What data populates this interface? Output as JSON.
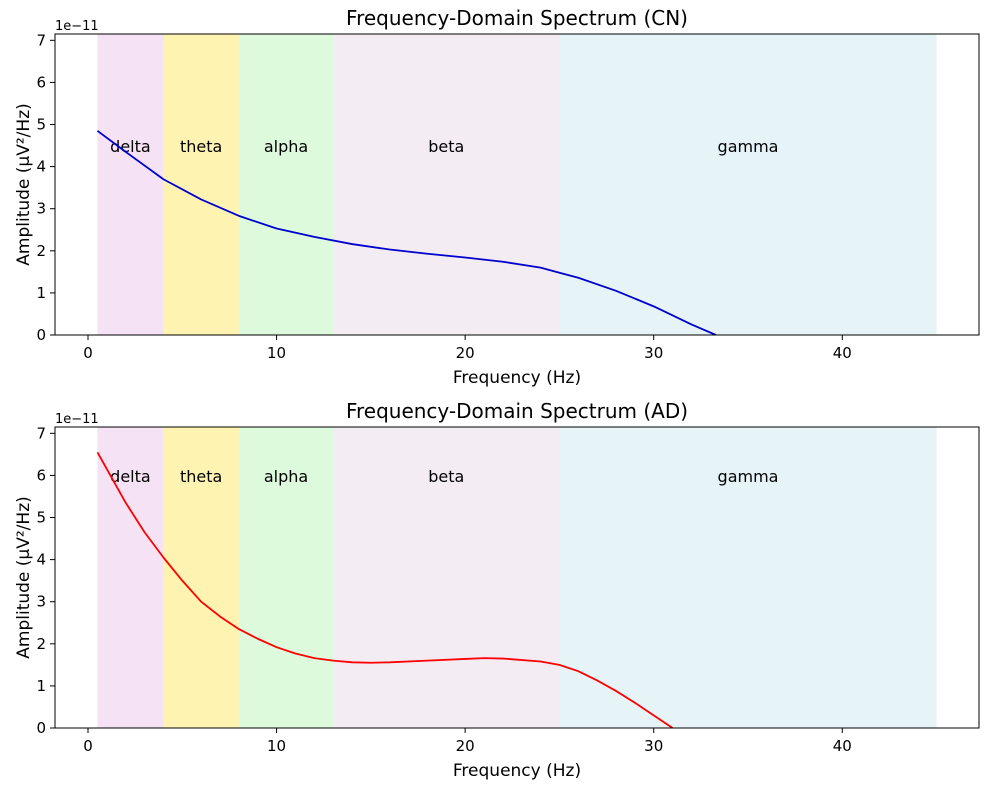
{
  "chart_data": [
    {
      "type": "line",
      "title": "Frequency-Domain Spectrum (CN)",
      "xlabel": "Frequency (Hz)",
      "ylabel": "Amplitude (µV²/Hz)",
      "y_offset_label": "1e−11",
      "xlim": [
        -1.75,
        47.25
      ],
      "ylim": [
        0,
        7.15
      ],
      "xticks": [
        0,
        10,
        20,
        30,
        40
      ],
      "xtick_labels": [
        "0",
        "10",
        "20",
        "30",
        "40"
      ],
      "yticks": [
        0,
        1,
        2,
        3,
        4,
        5,
        6,
        7
      ],
      "ytick_labels": [
        "0",
        "1",
        "2",
        "3",
        "4",
        "5",
        "6",
        "7"
      ],
      "grid": false,
      "bands": [
        {
          "name": "delta",
          "range": [
            0.5,
            4
          ],
          "color": "#dda0dd"
        },
        {
          "name": "theta",
          "range": [
            4,
            8
          ],
          "color": "#ffd700"
        },
        {
          "name": "alpha",
          "range": [
            8,
            13
          ],
          "color": "#90ee90"
        },
        {
          "name": "beta",
          "range": [
            13,
            25
          ],
          "color": "#d8bfd8"
        },
        {
          "name": "gamma",
          "range": [
            25,
            45
          ],
          "color": "#add8e6"
        }
      ],
      "band_label_y": 4.45,
      "series": [
        {
          "color": "#0000cd",
          "x": [
            0.5,
            2,
            4,
            6,
            8,
            10,
            12,
            14,
            16,
            18,
            20,
            22,
            24,
            25,
            26,
            28,
            30,
            32,
            33.3
          ],
          "y": [
            4.85,
            4.35,
            3.7,
            3.22,
            2.83,
            2.53,
            2.33,
            2.16,
            2.03,
            1.93,
            1.84,
            1.74,
            1.6,
            1.48,
            1.36,
            1.05,
            0.68,
            0.25,
            0
          ]
        }
      ]
    },
    {
      "type": "line",
      "title": "Frequency-Domain Spectrum (AD)",
      "xlabel": "Frequency (Hz)",
      "ylabel": "Amplitude (µV²/Hz)",
      "y_offset_label": "1e−11",
      "xlim": [
        -1.75,
        47.25
      ],
      "ylim": [
        0,
        7.15
      ],
      "xticks": [
        0,
        10,
        20,
        30,
        40
      ],
      "xtick_labels": [
        "0",
        "10",
        "20",
        "30",
        "40"
      ],
      "yticks": [
        0,
        1,
        2,
        3,
        4,
        5,
        6,
        7
      ],
      "ytick_labels": [
        "0",
        "1",
        "2",
        "3",
        "4",
        "5",
        "6",
        "7"
      ],
      "grid": false,
      "bands": [
        {
          "name": "delta",
          "range": [
            0.5,
            4
          ],
          "color": "#dda0dd"
        },
        {
          "name": "theta",
          "range": [
            4,
            8
          ],
          "color": "#ffd700"
        },
        {
          "name": "alpha",
          "range": [
            8,
            13
          ],
          "color": "#90ee90"
        },
        {
          "name": "beta",
          "range": [
            13,
            25
          ],
          "color": "#d8bfd8"
        },
        {
          "name": "gamma",
          "range": [
            25,
            45
          ],
          "color": "#add8e6"
        }
      ],
      "band_label_y": 5.95,
      "series": [
        {
          "color": "#ff0000",
          "x": [
            0.5,
            1,
            2,
            3,
            4,
            5,
            6,
            7,
            8,
            9,
            10,
            11,
            12,
            13,
            14,
            15,
            16,
            18,
            20,
            21,
            22,
            24,
            25,
            26,
            27,
            28,
            29,
            30,
            31
          ],
          "y": [
            6.55,
            6.15,
            5.35,
            4.65,
            4.05,
            3.5,
            3.0,
            2.65,
            2.35,
            2.12,
            1.92,
            1.77,
            1.66,
            1.6,
            1.56,
            1.55,
            1.56,
            1.6,
            1.64,
            1.66,
            1.65,
            1.58,
            1.5,
            1.35,
            1.13,
            0.88,
            0.6,
            0.3,
            0
          ]
        }
      ]
    }
  ]
}
